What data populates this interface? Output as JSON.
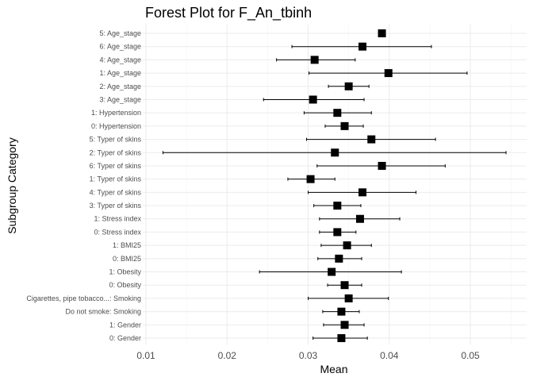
{
  "chart_data": {
    "type": "forest",
    "title": "Forest Plot for F_An_tbinh",
    "xlabel": "Mean",
    "ylabel": "Subgroup Category",
    "xlim": [
      0.01,
      0.056
    ],
    "xticks": [
      0.01,
      0.02,
      0.03,
      0.04,
      0.05
    ],
    "xtick_labels": [
      "0.01",
      "0.02",
      "0.03",
      "0.04",
      "0.05"
    ],
    "grid": true,
    "rows": [
      {
        "label": "5: Age_stage",
        "mean": 0.0391,
        "lower": null,
        "upper": null
      },
      {
        "label": "6: Age_stage",
        "mean": 0.0367,
        "lower": 0.028,
        "upper": 0.0452
      },
      {
        "label": "4: Age_stage",
        "mean": 0.0308,
        "lower": 0.0261,
        "upper": 0.0358
      },
      {
        "label": "1: Age_stage",
        "mean": 0.0399,
        "lower": 0.0301,
        "upper": 0.0496
      },
      {
        "label": "2: Age_stage",
        "mean": 0.035,
        "lower": 0.0325,
        "upper": 0.0375
      },
      {
        "label": "3: Age_stage",
        "mean": 0.0306,
        "lower": 0.0245,
        "upper": 0.0369
      },
      {
        "label": "1: Hypertension",
        "mean": 0.0336,
        "lower": 0.0295,
        "upper": 0.0378
      },
      {
        "label": "0: Hypertension",
        "mean": 0.0345,
        "lower": 0.0321,
        "upper": 0.0368
      },
      {
        "label": "5: Typer of skins",
        "mean": 0.0378,
        "lower": 0.0298,
        "upper": 0.0457
      },
      {
        "label": "2: Typer of skins",
        "mean": 0.0333,
        "lower": 0.0121,
        "upper": 0.0544
      },
      {
        "label": "6: Typer of skins",
        "mean": 0.0391,
        "lower": 0.0311,
        "upper": 0.0469
      },
      {
        "label": "1: Typer of skins",
        "mean": 0.0303,
        "lower": 0.0275,
        "upper": 0.0333
      },
      {
        "label": "4: Typer of skins",
        "mean": 0.0367,
        "lower": 0.03,
        "upper": 0.0433
      },
      {
        "label": "3: Typer of skins",
        "mean": 0.0336,
        "lower": 0.0307,
        "upper": 0.0365
      },
      {
        "label": "1: Stress index",
        "mean": 0.0364,
        "lower": 0.0314,
        "upper": 0.0413
      },
      {
        "label": "0: Stress index",
        "mean": 0.0336,
        "lower": 0.0314,
        "upper": 0.0359
      },
      {
        "label": "1: BMI25",
        "mean": 0.0348,
        "lower": 0.0316,
        "upper": 0.0378
      },
      {
        "label": "0: BMI25",
        "mean": 0.0338,
        "lower": 0.0312,
        "upper": 0.0366
      },
      {
        "label": "1: Obesity",
        "mean": 0.0329,
        "lower": 0.024,
        "upper": 0.0415
      },
      {
        "label": "0: Obesity",
        "mean": 0.0345,
        "lower": 0.0324,
        "upper": 0.0366
      },
      {
        "label": "Cigarettes, pipe tobacco...: Smoking",
        "mean": 0.035,
        "lower": 0.03,
        "upper": 0.0399
      },
      {
        "label": "Do not smoke: Smoking",
        "mean": 0.0341,
        "lower": 0.0318,
        "upper": 0.0363
      },
      {
        "label": "1: Gender",
        "mean": 0.0345,
        "lower": 0.0319,
        "upper": 0.0369
      },
      {
        "label": "0: Gender",
        "mean": 0.0341,
        "lower": 0.0306,
        "upper": 0.0373
      }
    ],
    "colors": {
      "points": "#000000",
      "ci": "#000000",
      "grid": "#ebebeb",
      "background": "#ffffff"
    }
  }
}
